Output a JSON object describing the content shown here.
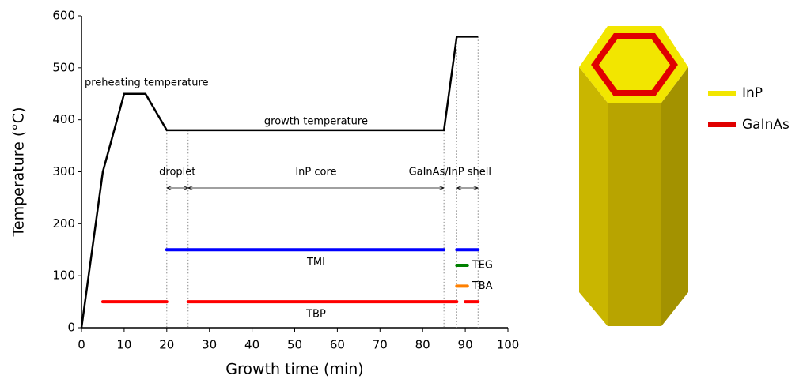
{
  "chart_data": {
    "type": "line",
    "x_label": "Growth time (min)",
    "y_label": "Temperature (°C)",
    "x": [
      0,
      5,
      10,
      15,
      20,
      85,
      88,
      93
    ],
    "values": [
      0,
      300,
      450,
      450,
      380,
      380,
      560,
      560
    ],
    "color": "#000000",
    "xlim": [
      0,
      100
    ],
    "xticks": [
      0,
      10,
      20,
      30,
      40,
      50,
      60,
      70,
      80,
      90,
      100
    ],
    "ylim": [
      0,
      600
    ],
    "yticks": [
      0,
      100,
      200,
      300,
      400,
      500,
      600
    ],
    "annotations": [
      "preheating temperature",
      "growth temperature"
    ],
    "boundaries": [
      20,
      25,
      85,
      88,
      93
    ],
    "phases": [
      {
        "label": "droplet",
        "start": 20,
        "end": 25
      },
      {
        "label": "InP core",
        "start": 25,
        "end": 85
      },
      {
        "label": "GaInAs/InP shell",
        "start": 88,
        "end": 93
      }
    ],
    "sources": [
      {
        "name": "TMI",
        "color": "#0000ff",
        "y": 150,
        "segments": [
          [
            20,
            85
          ],
          [
            88,
            93
          ]
        ]
      },
      {
        "name": "TEG",
        "color": "#008000",
        "y": 120,
        "segments": [
          [
            88,
            90.5
          ]
        ]
      },
      {
        "name": "TBA",
        "color": "#ff8000",
        "y": 80,
        "segments": [
          [
            88,
            90.5
          ]
        ]
      },
      {
        "name": "TBP",
        "color": "#ff0000",
        "y": 50,
        "segments": [
          [
            5,
            20
          ],
          [
            25,
            88
          ],
          [
            90,
            93
          ]
        ]
      }
    ]
  },
  "diagram": {
    "legend": [
      {
        "label": "InP",
        "color": "#f2e600"
      },
      {
        "label": "GaInAs",
        "color": "#e00000"
      }
    ]
  }
}
